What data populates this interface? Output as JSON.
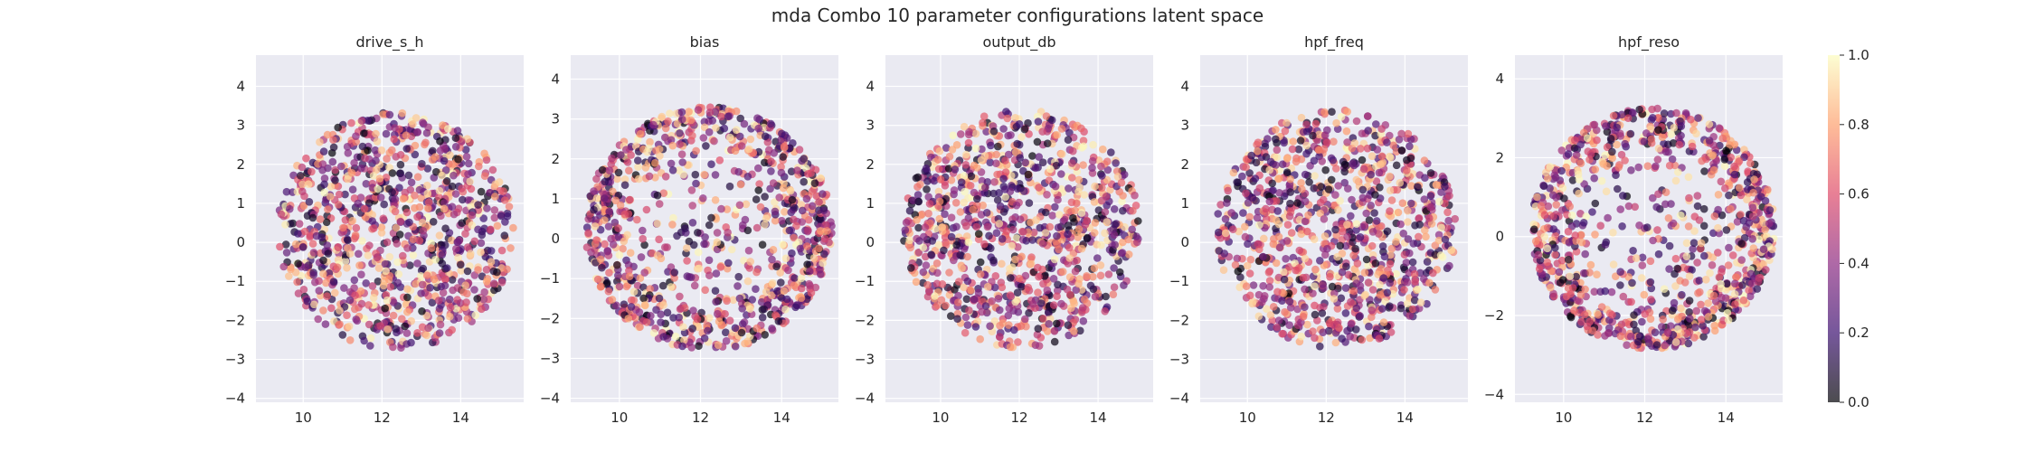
{
  "chart_data": {
    "type": "scatter",
    "title": "mda Combo 10 parameter configurations latent space",
    "colormap": [
      "#000004",
      "#3b0f70",
      "#8c2981",
      "#de4968",
      "#fe9f6d",
      "#fcfdbf"
    ],
    "point_alpha": 0.7,
    "grid": true,
    "background": "#eaeaf2",
    "colorbar": {
      "range": [
        0.0,
        1.0
      ],
      "ticks": [
        "0.0",
        "0.2",
        "0.4",
        "0.6",
        "0.8",
        "1.0"
      ]
    },
    "xticks": [
      "10",
      "12",
      "14"
    ],
    "points_per_panel": 1000,
    "panels": [
      {
        "title": "drive_s_h",
        "xlim": [
          8.8,
          15.6
        ],
        "ylim": [
          -4.1,
          4.8
        ],
        "yticks": [
          "−4",
          "−3",
          "−2",
          "−1",
          "0",
          "1",
          "2",
          "3",
          "4"
        ],
        "cloud": {
          "center_x": 12.35,
          "center_y": 0.3,
          "radius_x": 3.0,
          "radius_y": 3.05,
          "pattern": "uniform",
          "seed": 11
        }
      },
      {
        "title": "bias",
        "xlim": [
          8.8,
          15.4
        ],
        "ylim": [
          -4.1,
          4.6
        ],
        "yticks": [
          "−4",
          "−3",
          "−2",
          "−1",
          "0",
          "1",
          "2",
          "3",
          "4"
        ],
        "cloud": {
          "center_x": 12.2,
          "center_y": 0.25,
          "radius_x": 3.05,
          "radius_y": 3.05,
          "pattern": "ring",
          "seed": 23
        }
      },
      {
        "title": "output_db",
        "xlim": [
          8.6,
          15.4
        ],
        "ylim": [
          -4.1,
          4.8
        ],
        "yticks": [
          "−4",
          "−3",
          "−2",
          "−1",
          "0",
          "1",
          "2",
          "3",
          "4"
        ],
        "cloud": {
          "center_x": 12.05,
          "center_y": 0.35,
          "radius_x": 3.0,
          "radius_y": 3.05,
          "pattern": "uniform",
          "seed": 37
        }
      },
      {
        "title": "hpf_freq",
        "xlim": [
          8.8,
          15.6
        ],
        "ylim": [
          -4.1,
          4.8
        ],
        "yticks": [
          "−4",
          "−3",
          "−2",
          "−1",
          "0",
          "1",
          "2",
          "3",
          "4"
        ],
        "cloud": {
          "center_x": 12.25,
          "center_y": 0.35,
          "radius_x": 3.05,
          "radius_y": 3.05,
          "pattern": "uniform",
          "seed": 41
        }
      },
      {
        "title": "hpf_reso",
        "xlim": [
          8.8,
          15.4
        ],
        "ylim": [
          -4.2,
          4.6
        ],
        "yticks": [
          "−4",
          "−2",
          "0",
          "2",
          "4"
        ],
        "cloud": {
          "center_x": 12.2,
          "center_y": 0.2,
          "radius_x": 3.0,
          "radius_y": 3.05,
          "pattern": "ring",
          "seed": 53
        }
      }
    ]
  }
}
